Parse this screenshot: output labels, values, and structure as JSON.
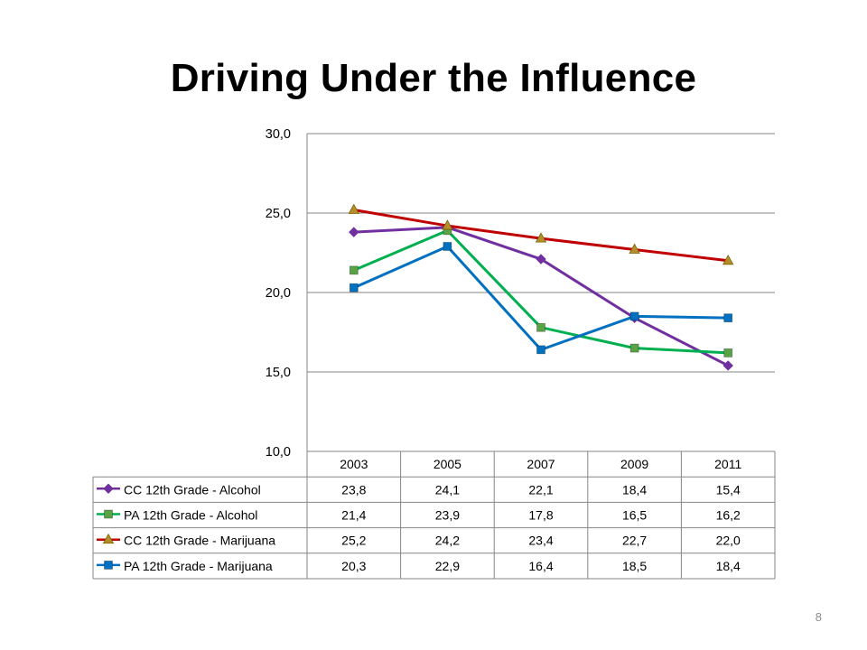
{
  "slide": {
    "title": "Driving Under the Influence",
    "page_number": "8"
  },
  "chart_data": {
    "type": "line",
    "title": "",
    "xlabel": "",
    "ylabel": "",
    "categories": [
      "2003",
      "2005",
      "2007",
      "2009",
      "2011"
    ],
    "ylim": [
      10.0,
      30.0
    ],
    "yticks": [
      "10,0",
      "15,0",
      "20,0",
      "25,0",
      "30,0"
    ],
    "grid": true,
    "legend_placement": "data-table-below",
    "series": [
      {
        "name": "CC 12th Grade - Alcohol",
        "values": [
          23.8,
          24.1,
          22.1,
          18.4,
          15.4
        ],
        "labels": [
          "23,8",
          "24,1",
          "22,1",
          "18,4",
          "15,4"
        ],
        "color": "#7030a0",
        "marker": "diamond"
      },
      {
        "name": "PA 12th Grade - Alcohol",
        "values": [
          21.4,
          23.9,
          17.8,
          16.5,
          16.2
        ],
        "labels": [
          "21,4",
          "23,9",
          "17,8",
          "16,5",
          "16,2"
        ],
        "color": "#00b050",
        "marker": "square"
      },
      {
        "name": "CC 12th Grade - Marijuana",
        "values": [
          25.2,
          24.2,
          23.4,
          22.7,
          22.0
        ],
        "labels": [
          "25,2",
          "24,2",
          "23,4",
          "22,7",
          "22,0"
        ],
        "color": "#c00000",
        "marker": "triangle"
      },
      {
        "name": "PA 12th Grade - Marijuana",
        "values": [
          20.3,
          22.9,
          16.4,
          18.5,
          18.4
        ],
        "labels": [
          "20,3",
          "22,9",
          "16,4",
          "18,5",
          "18,4"
        ],
        "color": "#0070c0",
        "marker": "square"
      }
    ]
  }
}
